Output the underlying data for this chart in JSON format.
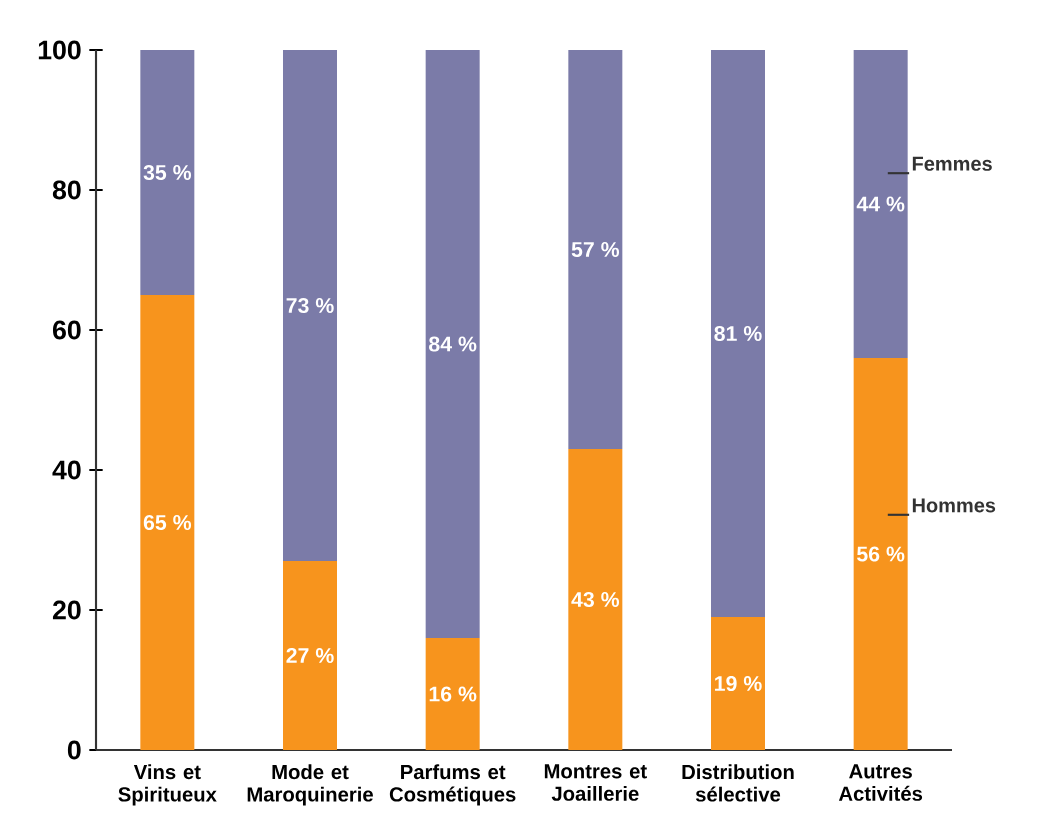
{
  "chart_data": {
    "type": "bar",
    "stacked": true,
    "categories": [
      "Vins et Spiritueux",
      "Mode et Maroquinerie",
      "Parfums et Cosmétiques",
      "Montres et Joaillerie",
      "Distribution sélective",
      "Autres Activités"
    ],
    "series": [
      {
        "name": "Hommes",
        "color": "#f7941d",
        "values": [
          65,
          27,
          16,
          43,
          19,
          56
        ],
        "value_labels": [
          "65 %",
          "27 %",
          "16 %",
          "43 %",
          "19 %",
          "56 %"
        ]
      },
      {
        "name": "Femmes",
        "color": "#7b7ba8",
        "values": [
          35,
          73,
          84,
          57,
          81,
          44
        ],
        "value_labels": [
          "35 %",
          "73 %",
          "84 %",
          "57 %",
          "81 %",
          "44 %"
        ]
      }
    ],
    "ylim": [
      0,
      100
    ],
    "yticks": [
      0,
      20,
      40,
      60,
      80,
      100
    ],
    "grid": false,
    "legend": "right"
  }
}
